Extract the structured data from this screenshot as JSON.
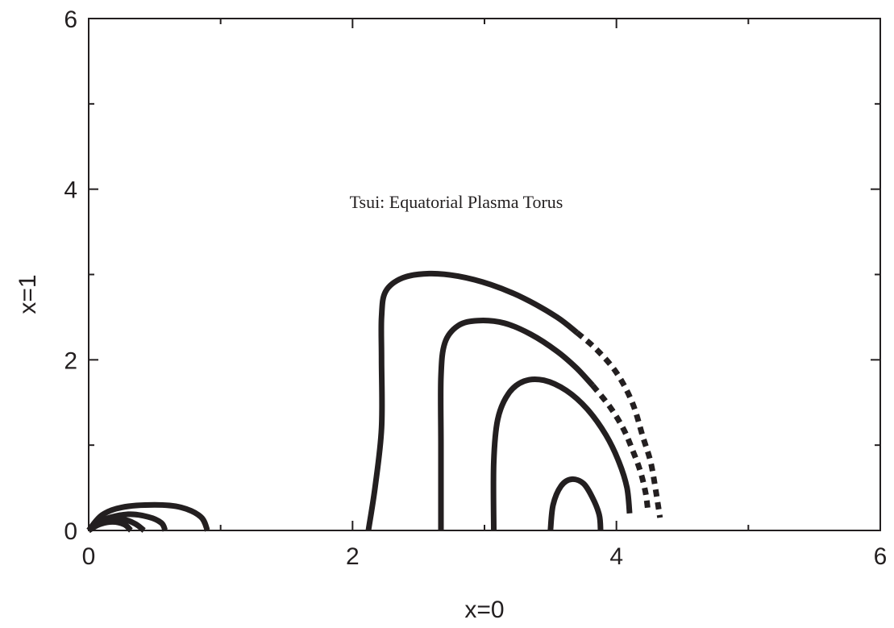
{
  "chart_data": {
    "type": "line",
    "title": "",
    "xlabel": "x=0",
    "ylabel": "x=1",
    "xlim": [
      0,
      6
    ],
    "ylim": [
      0,
      6
    ],
    "x_ticks": [
      "0",
      "2",
      "4",
      "6"
    ],
    "y_ticks": [
      "0",
      "2",
      "4",
      "6"
    ],
    "minor_ticks": true,
    "grid": false,
    "legend": "none",
    "annotation": "Tsui: Equatorial Plasma Torus",
    "line_color": "#231f20",
    "series": [
      {
        "style": "solid",
        "points": [
          [
            0.0,
            0.0
          ],
          [
            0.1,
            0.18
          ],
          [
            0.25,
            0.27
          ],
          [
            0.5,
            0.3
          ],
          [
            0.7,
            0.27
          ],
          [
            0.85,
            0.16
          ],
          [
            0.9,
            0.0
          ]
        ]
      },
      {
        "style": "solid",
        "points": [
          [
            0.0,
            0.0
          ],
          [
            0.12,
            0.13
          ],
          [
            0.3,
            0.19
          ],
          [
            0.45,
            0.16
          ],
          [
            0.55,
            0.09
          ],
          [
            0.58,
            0.0
          ]
        ]
      },
      {
        "style": "solid",
        "points": [
          [
            0.0,
            0.0
          ],
          [
            0.1,
            0.1
          ],
          [
            0.25,
            0.13
          ],
          [
            0.35,
            0.08
          ],
          [
            0.42,
            0.0
          ]
        ]
      },
      {
        "style": "solid",
        "points": [
          [
            0.0,
            0.0
          ],
          [
            0.08,
            0.07
          ],
          [
            0.18,
            0.1
          ],
          [
            0.27,
            0.07
          ],
          [
            0.32,
            0.0
          ]
        ]
      },
      {
        "style": "solid",
        "points": [
          [
            2.12,
            0.0
          ],
          [
            2.17,
            0.5
          ],
          [
            2.22,
            1.2
          ],
          [
            2.22,
            2.0
          ],
          [
            2.22,
            2.5
          ],
          [
            2.25,
            2.8
          ],
          [
            2.38,
            2.96
          ],
          [
            2.58,
            3.01
          ],
          [
            2.8,
            2.98
          ],
          [
            3.05,
            2.88
          ],
          [
            3.3,
            2.72
          ],
          [
            3.55,
            2.5
          ],
          [
            3.7,
            2.32
          ]
        ]
      },
      {
        "style": "dashed",
        "points": [
          [
            3.7,
            2.32
          ],
          [
            3.85,
            2.12
          ],
          [
            4.0,
            1.85
          ],
          [
            4.12,
            1.5
          ],
          [
            4.2,
            1.1
          ],
          [
            4.26,
            0.8
          ],
          [
            4.3,
            0.45
          ],
          [
            4.33,
            0.15
          ]
        ]
      },
      {
        "style": "solid",
        "points": [
          [
            2.67,
            0.0
          ],
          [
            2.67,
            1.0
          ],
          [
            2.67,
            1.8
          ],
          [
            2.7,
            2.2
          ],
          [
            2.8,
            2.4
          ],
          [
            2.95,
            2.46
          ],
          [
            3.15,
            2.43
          ],
          [
            3.35,
            2.3
          ],
          [
            3.55,
            2.1
          ],
          [
            3.7,
            1.9
          ],
          [
            3.82,
            1.7
          ]
        ]
      },
      {
        "style": "dashed",
        "points": [
          [
            3.82,
            1.7
          ],
          [
            3.95,
            1.45
          ],
          [
            4.05,
            1.2
          ],
          [
            4.12,
            0.95
          ],
          [
            4.18,
            0.7
          ],
          [
            4.22,
            0.45
          ],
          [
            4.24,
            0.22
          ]
        ]
      },
      {
        "style": "solid",
        "points": [
          [
            3.07,
            0.0
          ],
          [
            3.07,
            0.8
          ],
          [
            3.1,
            1.3
          ],
          [
            3.18,
            1.6
          ],
          [
            3.3,
            1.75
          ],
          [
            3.45,
            1.76
          ],
          [
            3.62,
            1.64
          ],
          [
            3.78,
            1.42
          ],
          [
            3.92,
            1.12
          ],
          [
            4.02,
            0.8
          ],
          [
            4.08,
            0.5
          ],
          [
            4.1,
            0.2
          ]
        ]
      },
      {
        "style": "solid",
        "points": [
          [
            3.5,
            0.0
          ],
          [
            3.52,
            0.3
          ],
          [
            3.58,
            0.52
          ],
          [
            3.66,
            0.6
          ],
          [
            3.75,
            0.55
          ],
          [
            3.82,
            0.38
          ],
          [
            3.87,
            0.18
          ],
          [
            3.88,
            0.0
          ]
        ]
      }
    ]
  }
}
